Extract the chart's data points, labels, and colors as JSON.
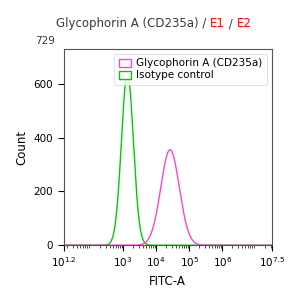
{
  "title_parts": [
    {
      "text": "Glycophorin A (CD235a) / ",
      "color": "#3a3a3a"
    },
    {
      "text": "E1",
      "color": "#ff0000"
    },
    {
      "text": " / ",
      "color": "#3a3a3a"
    },
    {
      "text": "E2",
      "color": "#ff0000"
    }
  ],
  "xlabel": "FITC-A",
  "ylabel": "Count",
  "xmin_log": 1.2,
  "xmax_log": 7.5,
  "ymin": 0,
  "ymax": 729,
  "yticks": [
    0,
    200,
    400,
    600
  ],
  "ytop_label": "729",
  "xtick_powers": [
    1.2,
    3,
    4,
    5,
    6,
    7.5
  ],
  "xtick_labels": [
    "10^{1.2}",
    "10^3",
    "10^4",
    "10^5",
    "10^6",
    "10^{7.5}"
  ],
  "green_curve": {
    "peak_log": 3.13,
    "peak_height": 640,
    "sigma": 0.18,
    "color": "#00cc00",
    "label": "Isotype control"
  },
  "magenta_curve": {
    "peak_log": 4.42,
    "peak_height": 355,
    "sigma": 0.28,
    "color": "#ff44cc",
    "label": "Glycophorin A (CD235a)"
  },
  "background_color": "#ffffff",
  "title_fontsize": 8.5,
  "axis_fontsize": 8.5,
  "tick_fontsize": 7.5,
  "legend_fontsize": 7.5
}
